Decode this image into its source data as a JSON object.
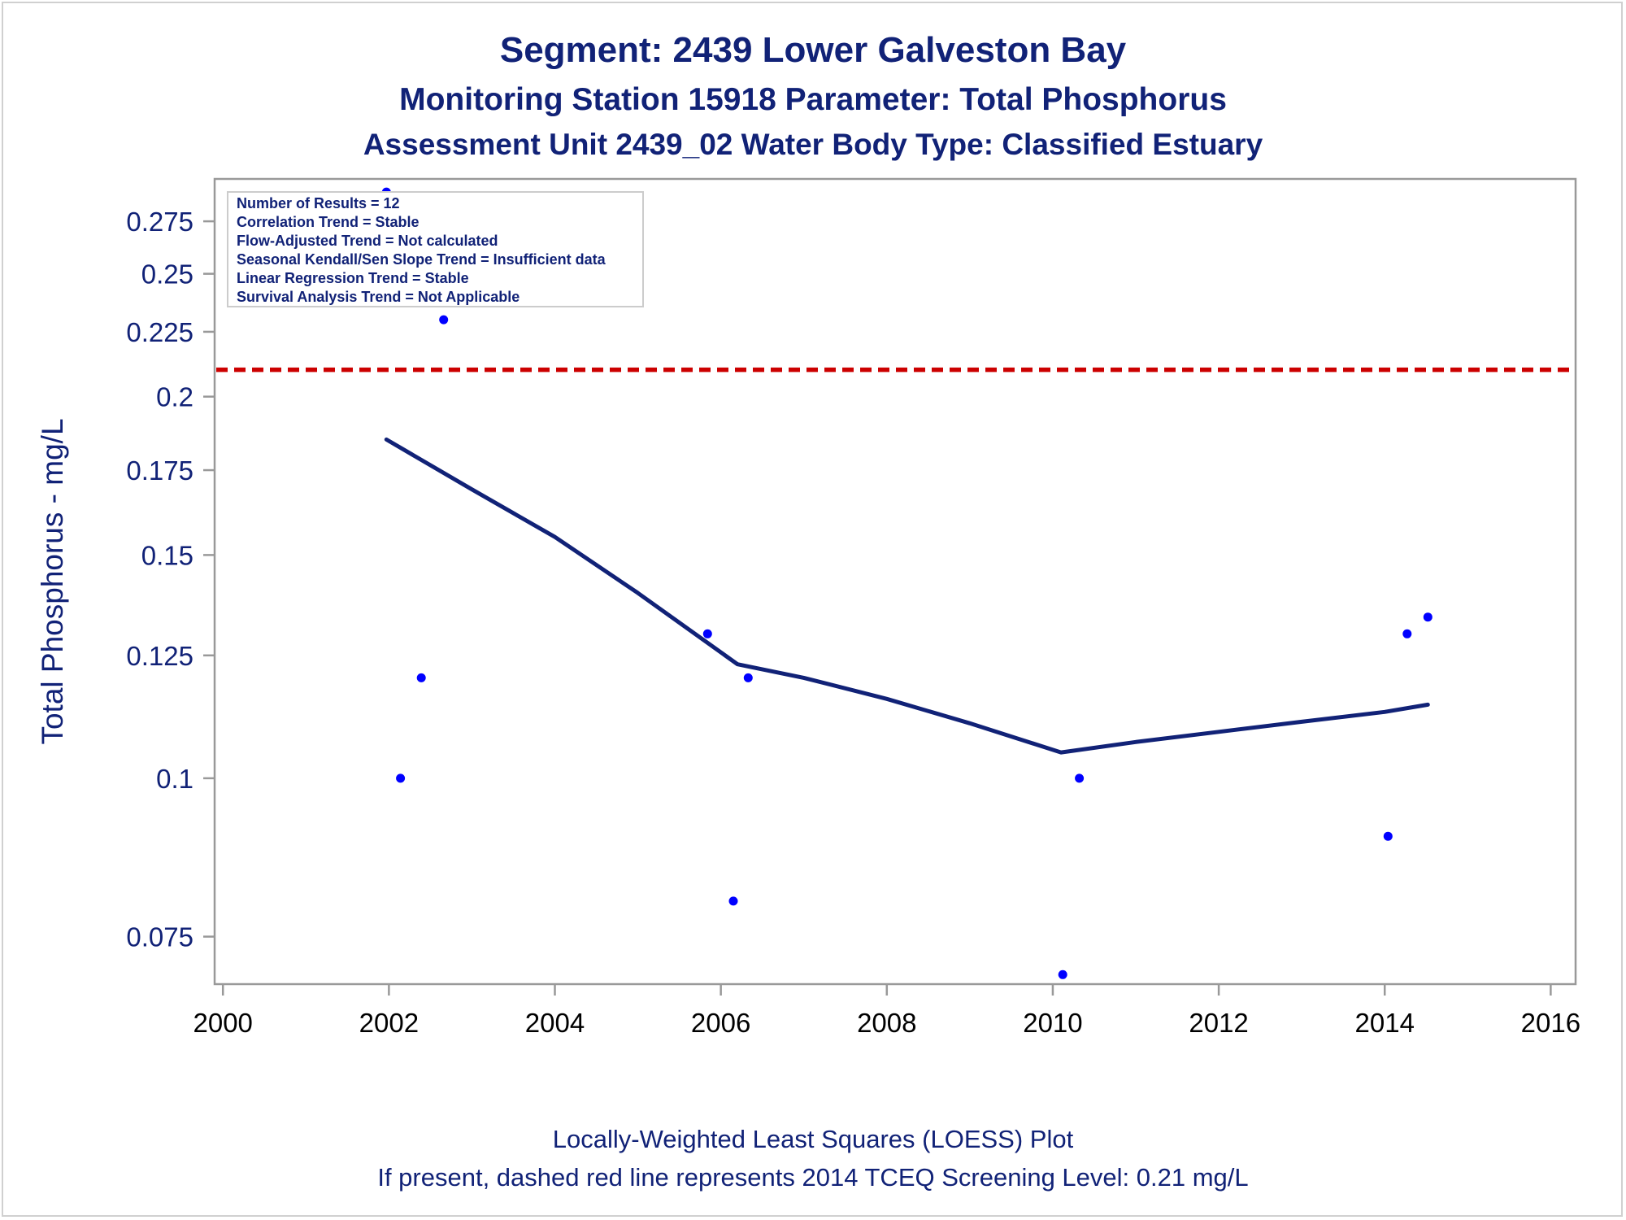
{
  "titles": {
    "line1": "Segment: 2439  Lower Galveston Bay",
    "line2": "Monitoring Station 15918 Parameter: Total Phosphorus",
    "line3": "Assessment Unit 2439_02   Water Body Type: Classified Estuary"
  },
  "footnotes": {
    "line1": "Locally-Weighted Least Squares (LOESS) Plot",
    "line2": "If present, dashed red line represents 2014 TCEQ Screening Level: 0.21 mg/L"
  },
  "legend": {
    "lines": [
      "Number of Results = 12",
      "Correlation Trend = Stable",
      "Flow-Adjusted Trend = Not calculated",
      "Seasonal Kendall/Sen Slope Trend = Insufficient data",
      "Linear Regression Trend = Stable",
      "Survival Analysis Trend = Not Applicable"
    ]
  },
  "colors": {
    "points": "#0000ff",
    "loess": "#112277",
    "screening": "#cc0000",
    "axis": "#999999",
    "text": "#112277"
  },
  "chart_data": {
    "type": "scatter",
    "title": "Segment: 2439  Lower Galveston Bay",
    "xlabel": "",
    "ylabel": "Total Phosphorus - mg/L",
    "xlim": [
      1999.9,
      2016.3
    ],
    "ylim": [
      0.0688,
      0.297
    ],
    "yscale": "log",
    "grid": false,
    "xticks": [
      2000,
      2002,
      2004,
      2006,
      2008,
      2010,
      2012,
      2014,
      2016
    ],
    "yticks": [
      0.075,
      0.1,
      0.125,
      0.15,
      0.175,
      0.2,
      0.225,
      0.25,
      0.275
    ],
    "ytick_labels": [
      "0.075",
      "0.1",
      "0.125",
      "0.15",
      "0.175",
      "0.2",
      "0.225",
      "0.25",
      "0.275"
    ],
    "series": [
      {
        "type": "scatter",
        "points": [
          {
            "x": 2001.97,
            "y": 0.29
          },
          {
            "x": 2002.14,
            "y": 0.1
          },
          {
            "x": 2002.39,
            "y": 0.12
          },
          {
            "x": 2002.66,
            "y": 0.23
          },
          {
            "x": 2005.84,
            "y": 0.13
          },
          {
            "x": 2006.15,
            "y": 0.08
          },
          {
            "x": 2006.33,
            "y": 0.12
          },
          {
            "x": 2010.12,
            "y": 0.07
          },
          {
            "x": 2010.32,
            "y": 0.1
          },
          {
            "x": 2014.04,
            "y": 0.09
          },
          {
            "x": 2014.27,
            "y": 0.13
          },
          {
            "x": 2014.52,
            "y": 0.134
          }
        ]
      },
      {
        "type": "line",
        "points": [
          {
            "x": 2001.97,
            "y": 0.185
          },
          {
            "x": 2003.0,
            "y": 0.169
          },
          {
            "x": 2004.0,
            "y": 0.155
          },
          {
            "x": 2005.0,
            "y": 0.14
          },
          {
            "x": 2006.2,
            "y": 0.123
          },
          {
            "x": 2007.0,
            "y": 0.12
          },
          {
            "x": 2008.0,
            "y": 0.1155
          },
          {
            "x": 2009.0,
            "y": 0.1105
          },
          {
            "x": 2010.1,
            "y": 0.1048
          },
          {
            "x": 2011.0,
            "y": 0.1068
          },
          {
            "x": 2012.0,
            "y": 0.1088
          },
          {
            "x": 2013.0,
            "y": 0.1108
          },
          {
            "x": 2014.0,
            "y": 0.1128
          },
          {
            "x": 2014.52,
            "y": 0.1143
          }
        ]
      }
    ],
    "reference_lines": [
      {
        "y": 0.21,
        "style": "dashed"
      }
    ],
    "legend_position": "top-left"
  }
}
